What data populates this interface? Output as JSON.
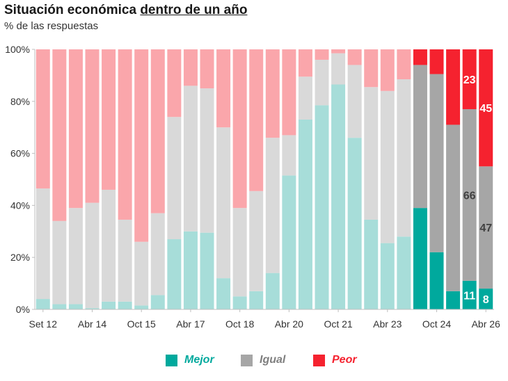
{
  "title_plain": "Situación económica ",
  "title_underlined": "dentro de un año",
  "subtitle": "% de las respuestas",
  "legend": [
    {
      "label": "Mejor",
      "color": "#00A99D"
    },
    {
      "label": "Igual",
      "color": "#A6A6A6"
    },
    {
      "label": "Peor",
      "color": "#F5222F"
    }
  ],
  "chart_data": {
    "type": "bar",
    "stacked": true,
    "y_ticks": [
      "0%",
      "20%",
      "40%",
      "60%",
      "80%",
      "100%"
    ],
    "ylim": [
      0,
      100
    ],
    "x_tick_labels": [
      {
        "label": "Set 12",
        "index": 0
      },
      {
        "label": "Abr 14",
        "index": 3
      },
      {
        "label": "Oct 15",
        "index": 6
      },
      {
        "label": "Abr 17",
        "index": 9
      },
      {
        "label": "Oct 18",
        "index": 12
      },
      {
        "label": "Abr 20",
        "index": 15
      },
      {
        "label": "Oct 21",
        "index": 18
      },
      {
        "label": "Abr 23",
        "index": 21
      },
      {
        "label": "Oct 24",
        "index": 24
      },
      {
        "label": "Abr 26",
        "index": 27
      }
    ],
    "series": [
      {
        "name": "Mejor",
        "values": [
          4,
          2,
          2,
          0.5,
          3,
          3,
          1.5,
          5.5,
          27,
          30,
          29.5,
          12,
          5,
          7,
          14,
          51.5,
          73,
          78.5,
          86.5,
          66,
          34.5,
          25.5,
          28,
          39,
          22,
          7,
          11,
          8
        ]
      },
      {
        "name": "Igual",
        "values": [
          42.5,
          32,
          37,
          40.5,
          43,
          31.5,
          24.5,
          31.5,
          47,
          56,
          55.5,
          58,
          34,
          38.5,
          52,
          15.5,
          16.5,
          17.5,
          12,
          28,
          51,
          58.5,
          60.5,
          55,
          68.5,
          64,
          66,
          47
        ]
      },
      {
        "name": "Peor",
        "values": [
          53.5,
          66,
          61,
          59,
          54,
          65.5,
          74,
          63,
          26,
          14,
          15,
          30,
          61,
          54.5,
          34,
          33,
          10.5,
          4,
          1.5,
          6,
          14.5,
          16,
          11.5,
          6,
          9.5,
          29,
          23,
          45
        ]
      }
    ],
    "highlight_from_index": 23,
    "colors": {
      "mejor_light": "#A7DDD9",
      "igual_light": "#D9D9D9",
      "peor_light": "#FAA6AB",
      "mejor_dark": "#00A99D",
      "igual_dark": "#A6A6A6",
      "peor_dark": "#F5222F"
    },
    "data_labels": [
      {
        "index": 26,
        "series": "Mejor",
        "text": "11",
        "color": "#ffffff"
      },
      {
        "index": 27,
        "series": "Mejor",
        "text": "8",
        "color": "#ffffff"
      },
      {
        "index": 26,
        "series": "Igual",
        "text": "66",
        "color": "#404040"
      },
      {
        "index": 27,
        "series": "Igual",
        "text": "47",
        "color": "#404040"
      },
      {
        "index": 26,
        "series": "Peor",
        "text": "23",
        "color": "#ffffff"
      },
      {
        "index": 27,
        "series": "Peor",
        "text": "45",
        "color": "#ffffff"
      }
    ]
  }
}
